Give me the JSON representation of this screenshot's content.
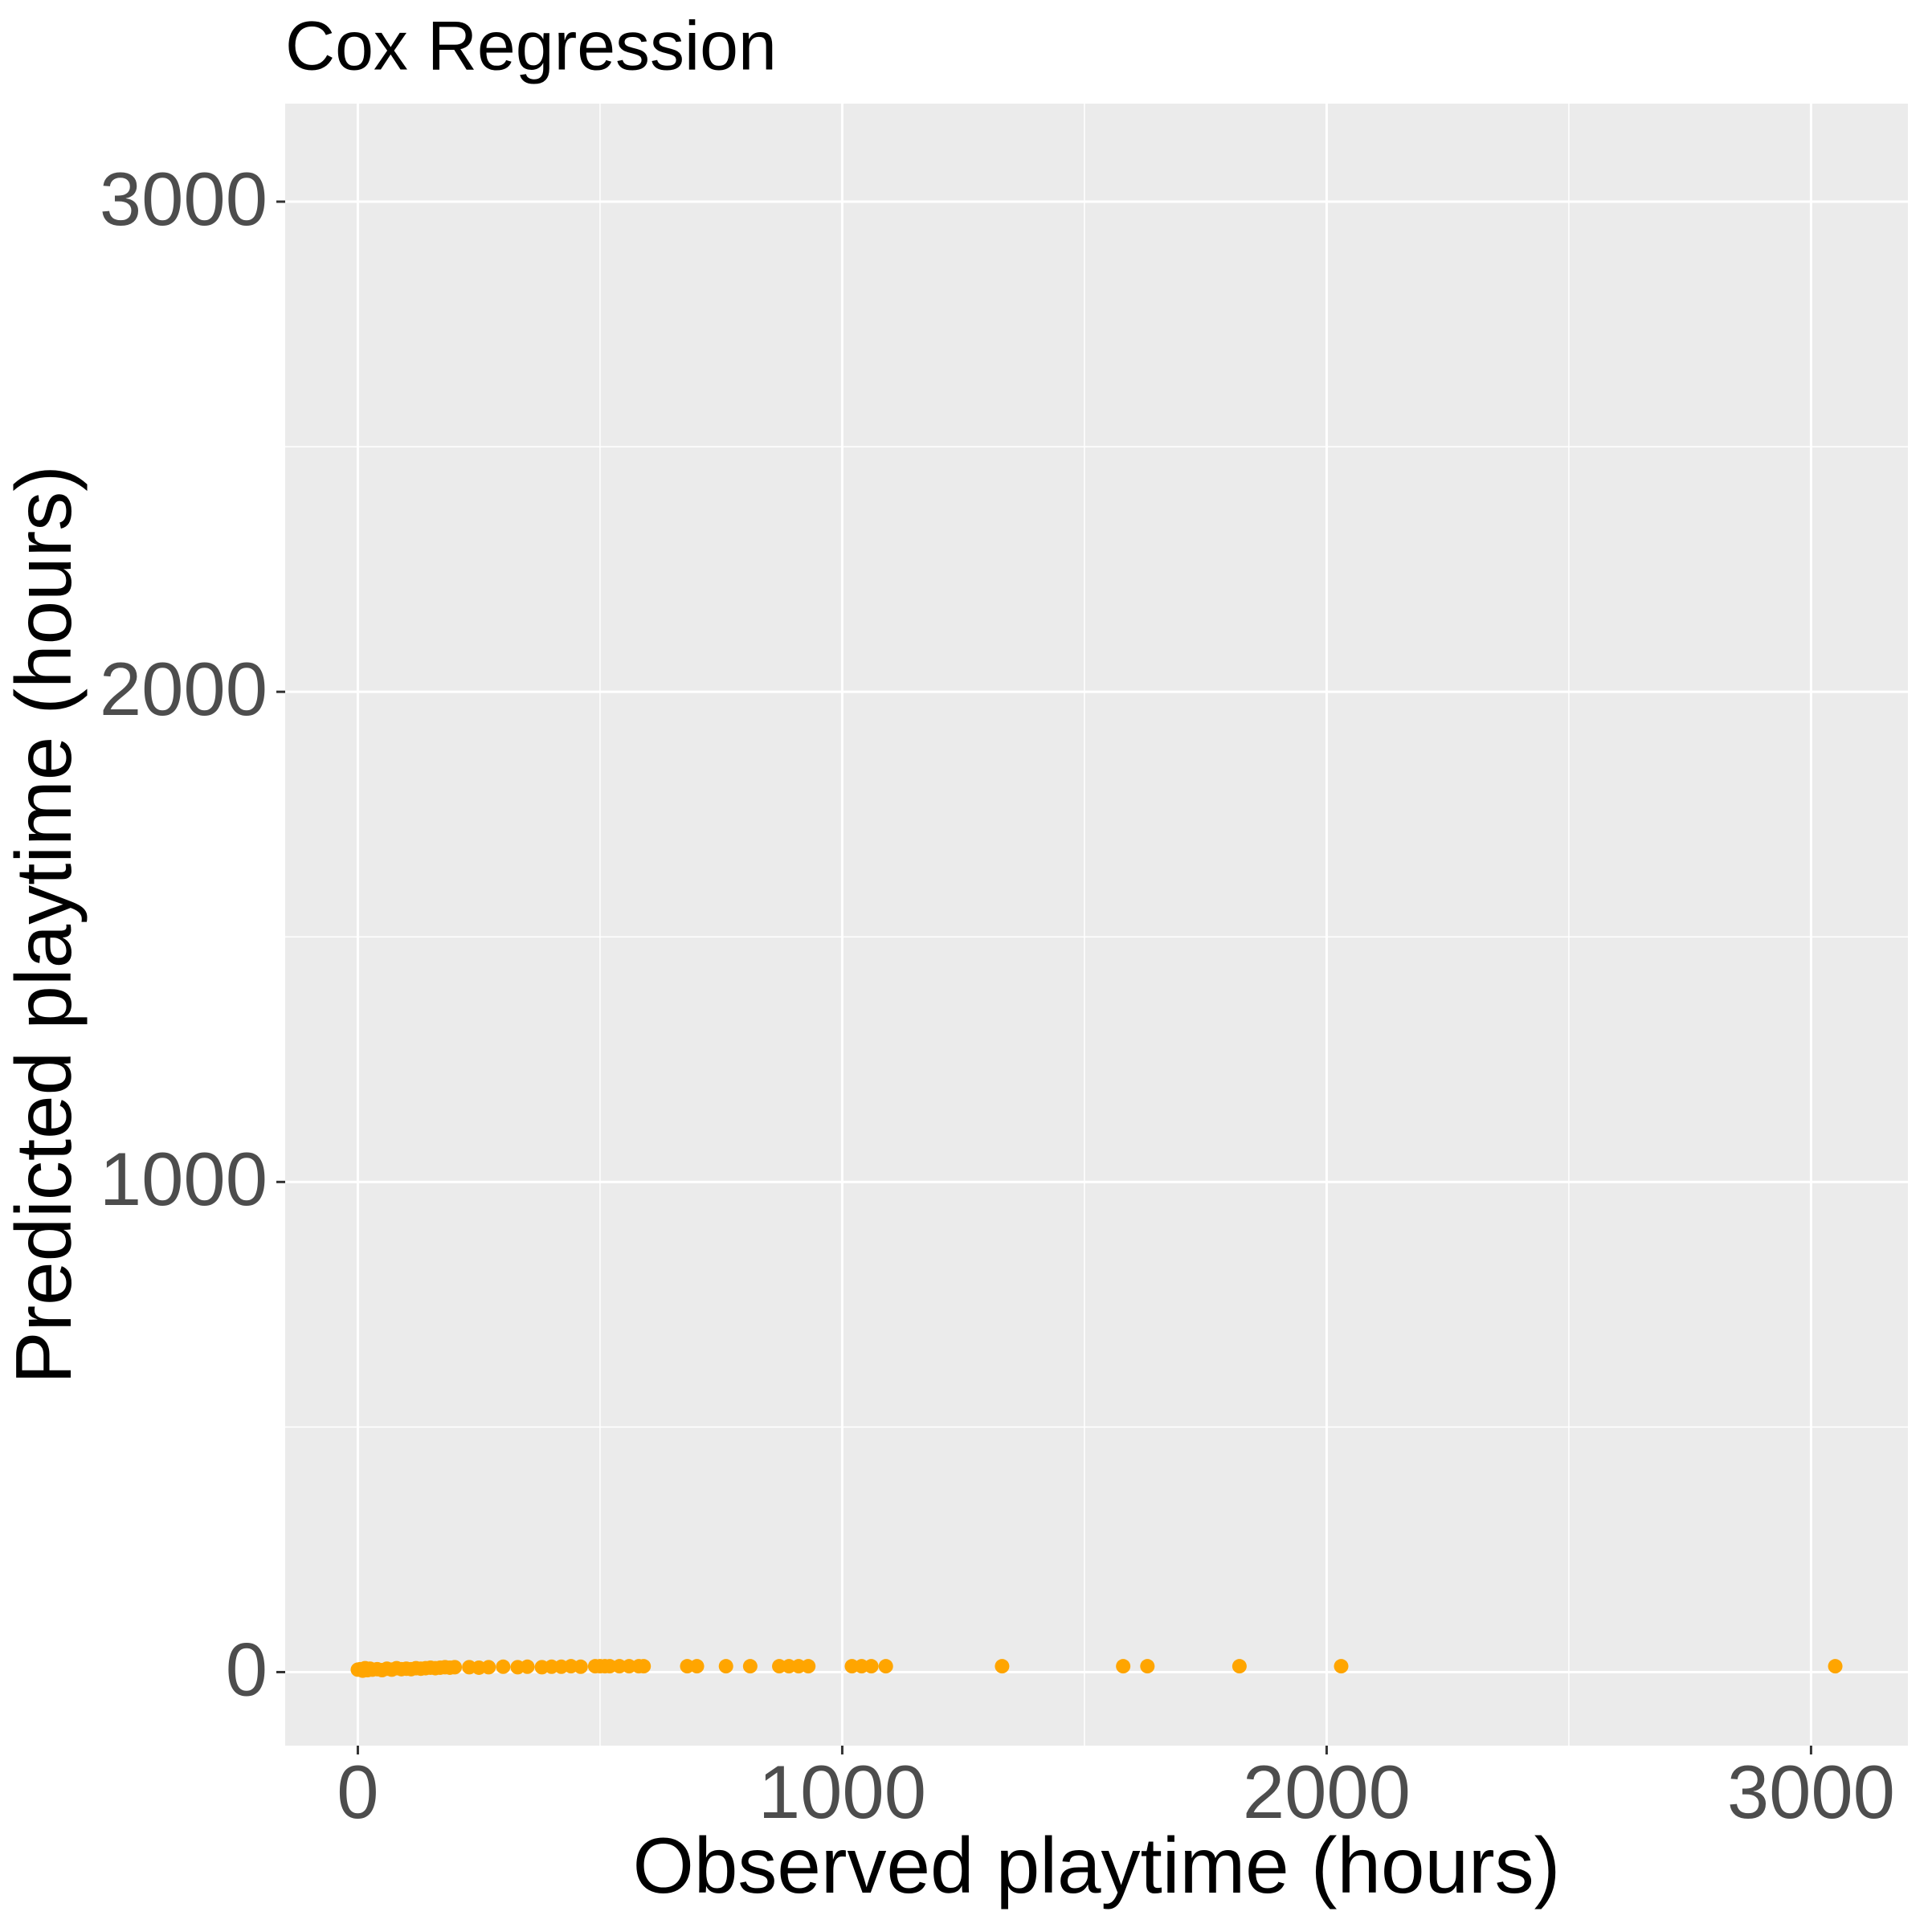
{
  "chart_data": {
    "type": "scatter",
    "title": "Cox Regression",
    "x_label": "Observed playtime (hours)",
    "y_label": "Predicted playtime (hours)",
    "xlim": [
      -150,
      3200
    ],
    "ylim": [
      -150,
      3200
    ],
    "xticks": [
      0,
      1000,
      2000,
      3000
    ],
    "yticks": [
      0,
      1000,
      2000,
      3000
    ],
    "minor_grid": [
      500,
      1500,
      2500
    ],
    "grid": true,
    "series": [
      {
        "color": "#FFA500",
        "x": [
          0,
          5,
          10,
          15,
          20,
          25,
          30,
          40,
          50,
          60,
          70,
          80,
          90,
          100,
          110,
          120,
          130,
          140,
          150,
          160,
          170,
          180,
          190,
          200,
          230,
          250,
          270,
          300,
          330,
          350,
          380,
          400,
          420,
          440,
          460,
          490,
          500,
          510,
          520,
          540,
          560,
          580,
          590,
          680,
          700,
          760,
          810,
          870,
          890,
          910,
          930,
          1020,
          1040,
          1060,
          1090,
          1330,
          1580,
          1630,
          1820,
          2030,
          3050
        ],
        "values": [
          5,
          6,
          3,
          8,
          4,
          7,
          5,
          6,
          4,
          7,
          5,
          8,
          6,
          7,
          6,
          8,
          7,
          8,
          9,
          8,
          9,
          10,
          9,
          10,
          10,
          9,
          10,
          11,
          10,
          11,
          10,
          11,
          11,
          12,
          11,
          12,
          12,
          12,
          12,
          12,
          12,
          12,
          12,
          12,
          12,
          12,
          12,
          12,
          12,
          12,
          12,
          12,
          12,
          12,
          12,
          12,
          12,
          12,
          12,
          12,
          12
        ]
      }
    ]
  }
}
